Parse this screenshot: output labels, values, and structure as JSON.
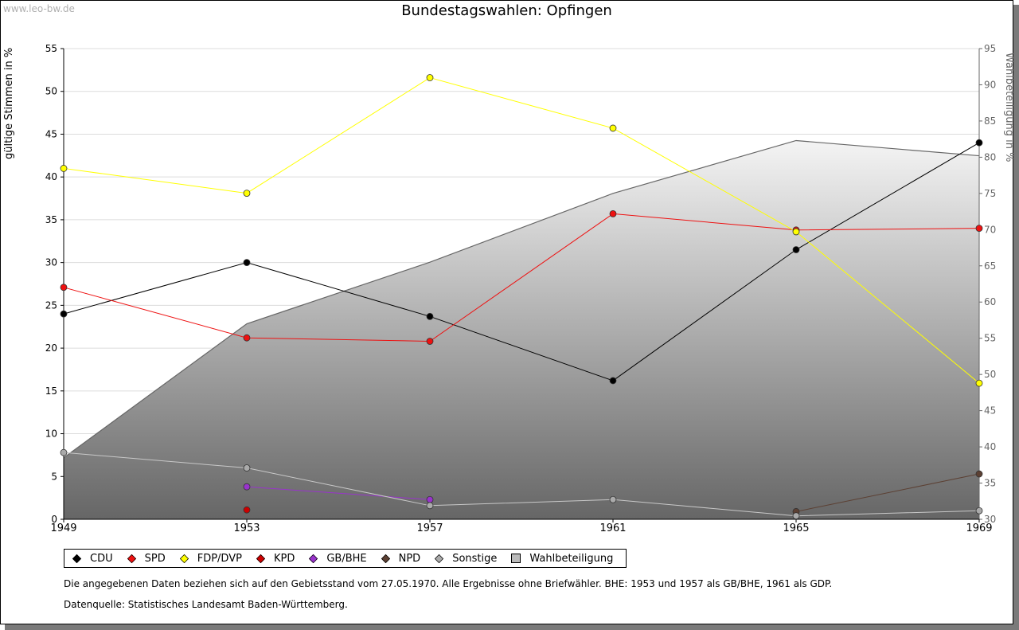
{
  "watermark": "www.leo-bw.de",
  "legend": [
    {
      "label": "CDU",
      "color": "#000000",
      "shape": "diamond"
    },
    {
      "label": "SPD",
      "color": "#ee1111",
      "shape": "diamond"
    },
    {
      "label": "FDP/DVP",
      "color": "#ffff00",
      "shape": "diamond"
    },
    {
      "label": "KPD",
      "color": "#cc0000",
      "shape": "diamond"
    },
    {
      "label": "GB/BHE",
      "color": "#9933cc",
      "shape": "diamond"
    },
    {
      "label": "NPD",
      "color": "#5c4033",
      "shape": "diamond"
    },
    {
      "label": "Sonstige",
      "color": "#aaaaaa",
      "shape": "diamond"
    },
    {
      "label": "Wahlbeteiligung",
      "color": "#bbbbbb",
      "shape": "square"
    }
  ],
  "notes": {
    "line1": "Die angegebenen Daten beziehen sich auf den Gebietsstand vom 27.05.1970. Alle Ergebnisse ohne Briefwähler. BHE: 1953 und 1957 als GB/BHE, 1961 als GDP.",
    "line2": "Datenquelle: Statistisches Landesamt Baden-Württemberg."
  },
  "chart_data": {
    "type": "line",
    "title": "Bundestagswahlen: Opfingen",
    "ylabel": "gültige Stimmen in %",
    "y2label": "Wahlbeteiligung in %",
    "x": [
      1949,
      1953,
      1957,
      1961,
      1965,
      1969
    ],
    "ylim": [
      0,
      55
    ],
    "yticks": [
      0,
      5,
      10,
      15,
      20,
      25,
      30,
      35,
      40,
      45,
      50,
      55
    ],
    "y2lim": [
      30,
      95
    ],
    "y2ticks": [
      30,
      35,
      40,
      45,
      50,
      55,
      60,
      65,
      70,
      75,
      80,
      85,
      90,
      95
    ],
    "series": [
      {
        "name": "Wahlbeteiligung",
        "axis": "right",
        "type": "area",
        "color": "#666666",
        "values": [
          38.5,
          57,
          65.5,
          75,
          82.3,
          80.2
        ]
      },
      {
        "name": "CDU",
        "color": "#000000",
        "values": [
          24.0,
          30.0,
          23.7,
          16.2,
          31.5,
          44.0
        ]
      },
      {
        "name": "SPD",
        "color": "#ee1111",
        "values": [
          27.1,
          21.2,
          20.8,
          35.7,
          33.8,
          34.0
        ]
      },
      {
        "name": "FDP/DVP",
        "color": "#ffff00",
        "values": [
          41.0,
          38.1,
          51.6,
          45.7,
          33.6,
          15.9
        ]
      },
      {
        "name": "KPD",
        "color": "#cc0000",
        "values": [
          null,
          1.1,
          null,
          null,
          null,
          null
        ]
      },
      {
        "name": "GB/BHE",
        "color": "#9933cc",
        "values": [
          null,
          3.8,
          2.3,
          null,
          null,
          null
        ]
      },
      {
        "name": "NPD",
        "color": "#5c4033",
        "values": [
          null,
          null,
          null,
          null,
          0.9,
          5.3
        ]
      },
      {
        "name": "Sonstige",
        "color": "#aaaaaa",
        "values": [
          7.8,
          6.0,
          1.6,
          2.3,
          0.4,
          1.0
        ]
      }
    ]
  }
}
